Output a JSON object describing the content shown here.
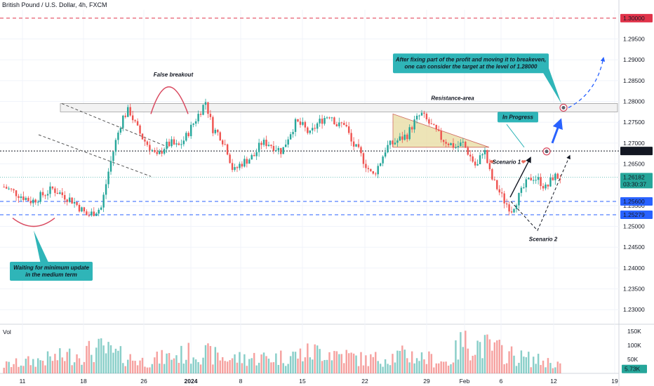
{
  "header": {
    "title": "British Pound / U.S. Dollar, 4h, FXCM"
  },
  "colors": {
    "up": "#26a69a",
    "down": "#ef5350",
    "grid": "#f0f3fa",
    "red_level": "#e0334a",
    "blue_level": "#2962ff",
    "teal_box": "#2fb5b8",
    "resistance_fill": "#f2f2f2",
    "triangle_fill": "#e8dba0",
    "arrow_blue": "#2962ff"
  },
  "chart_data": {
    "type": "candlestick",
    "y_axis": {
      "ticks": [
        "1.29500",
        "1.29000",
        "1.28500",
        "1.28000",
        "1.27500",
        "1.27000",
        "1.26500",
        "1.25500",
        "1.25000",
        "1.24500",
        "1.24000",
        "1.23500",
        "1.23000"
      ],
      "range": [
        1.2265,
        1.302
      ]
    },
    "x_axis": {
      "ticks": [
        {
          "label": "11",
          "bold": false
        },
        {
          "label": "18",
          "bold": false
        },
        {
          "label": "26",
          "bold": false
        },
        {
          "label": "2024",
          "bold": true
        },
        {
          "label": "8",
          "bold": false
        },
        {
          "label": "15",
          "bold": false
        },
        {
          "label": "22",
          "bold": false
        },
        {
          "label": "29",
          "bold": false
        },
        {
          "label": "Feb",
          "bold": false
        },
        {
          "label": "6",
          "bold": false
        },
        {
          "label": "12",
          "bold": false
        },
        {
          "label": "19",
          "bold": false
        }
      ]
    },
    "levels": [
      {
        "name": "red-level",
        "value": 1.3,
        "label": "1.30000",
        "style": "dashed",
        "color": "#e0334a"
      },
      {
        "name": "mid-level",
        "value": 1.2681,
        "label": "1.26810",
        "style": "dotted",
        "color": "#131722"
      },
      {
        "name": "blue-level-1",
        "value": 1.256,
        "label": "1.25600",
        "style": "dashed",
        "color": "#2962ff"
      },
      {
        "name": "blue-level-2",
        "value": 1.25279,
        "label": "1.25279",
        "style": "dashed",
        "color": "#2962ff"
      }
    ],
    "current_price": {
      "value": 1.26182,
      "label": "1.26182",
      "countdown": "03:30:37",
      "color": "#26a69a"
    },
    "resistance_area": {
      "low": 1.2775,
      "high": 1.2795,
      "label": "Resistance-area"
    },
    "annotations": {
      "false_breakout": "False breakout",
      "waiting_box": "Waiting for minimum update in the medium term",
      "in_progress": "In Progress",
      "scenario1": "Scenario 1",
      "scenario2": "Scenario 2",
      "target_box": "After fixing part of the profit and moving it to breakeven, one can consider the target at the level of 1.28000"
    },
    "volume": {
      "label": "Vol",
      "ticks": [
        "150K",
        "100K",
        "50K"
      ],
      "current_label": "5.73K",
      "max": 160000
    },
    "price_path": [
      [
        0,
        1.2595
      ],
      [
        4,
        1.256
      ],
      [
        7,
        1.259
      ],
      [
        10,
        1.256
      ],
      [
        12,
        1.2525
      ],
      [
        14,
        1.2545
      ],
      [
        15,
        1.263
      ],
      [
        16,
        1.27
      ],
      [
        17,
        1.276
      ],
      [
        18,
        1.278
      ],
      [
        19,
        1.274
      ],
      [
        20,
        1.271
      ],
      [
        21,
        1.269
      ],
      [
        22,
        1.2665
      ],
      [
        23,
        1.269
      ],
      [
        24,
        1.27
      ],
      [
        25,
        1.269
      ],
      [
        26,
        1.271
      ],
      [
        27,
        1.274
      ],
      [
        28,
        1.277
      ],
      [
        29,
        1.28
      ],
      [
        30,
        1.2735
      ],
      [
        31,
        1.272
      ],
      [
        32,
        1.269
      ],
      [
        33,
        1.263
      ],
      [
        34,
        1.265
      ],
      [
        36,
        1.267
      ],
      [
        37,
        1.27
      ],
      [
        38,
        1.27
      ],
      [
        40,
        1.268
      ],
      [
        41,
        1.272
      ],
      [
        42,
        1.275
      ],
      [
        43,
        1.274
      ],
      [
        44,
        1.272
      ],
      [
        45,
        1.2745
      ],
      [
        46,
        1.276
      ],
      [
        47,
        1.277
      ],
      [
        48,
        1.274
      ],
      [
        49,
        1.275
      ],
      [
        50,
        1.27
      ],
      [
        51,
        1.268
      ],
      [
        52,
        1.265
      ],
      [
        53,
        1.262
      ],
      [
        54,
        1.265
      ],
      [
        55,
        1.269
      ],
      [
        56,
        1.27
      ],
      [
        57,
        1.271
      ],
      [
        58,
        1.272
      ],
      [
        59,
        1.275
      ],
      [
        60,
        1.277
      ],
      [
        61,
        1.275
      ],
      [
        62,
        1.273
      ],
      [
        63,
        1.271
      ],
      [
        64,
        1.27
      ],
      [
        65,
        1.269
      ],
      [
        66,
        1.27
      ],
      [
        67,
        1.267
      ],
      [
        68,
        1.264
      ],
      [
        69,
        1.269
      ],
      [
        70,
        1.262
      ],
      [
        71,
        1.259
      ],
      [
        72,
        1.256
      ],
      [
        73,
        1.254
      ],
      [
        74,
        1.257
      ],
      [
        75,
        1.26
      ],
      [
        76,
        1.262
      ],
      [
        77,
        1.261
      ],
      [
        78,
        1.259
      ],
      [
        79,
        1.262
      ],
      [
        80,
        1.2618
      ]
    ],
    "volume_path": [
      [
        0,
        30000
      ],
      [
        8,
        60000
      ],
      [
        14,
        90000
      ],
      [
        16,
        70000
      ],
      [
        20,
        45000
      ],
      [
        28,
        80000
      ],
      [
        32,
        55000
      ],
      [
        40,
        60000
      ],
      [
        46,
        85000
      ],
      [
        52,
        50000
      ],
      [
        58,
        70000
      ],
      [
        64,
        40000
      ],
      [
        66,
        120000
      ],
      [
        70,
        95000
      ],
      [
        74,
        60000
      ],
      [
        80,
        35000
      ]
    ]
  }
}
